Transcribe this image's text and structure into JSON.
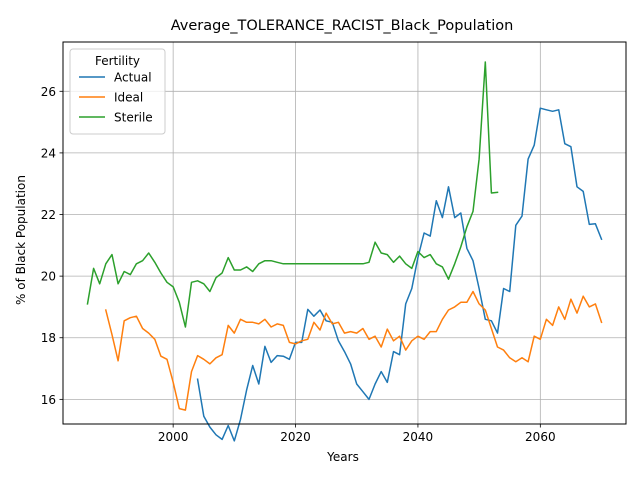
{
  "chart_data": {
    "type": "line",
    "title": "Average_TOLERANCE_RACIST_Black_Population",
    "xlabel": "Years",
    "ylabel": "% of Black Population",
    "xlim": [
      1982,
      2074
    ],
    "ylim": [
      15.2,
      27.6
    ],
    "xticks": [
      2000,
      2020,
      2040,
      2060
    ],
    "yticks": [
      16,
      18,
      20,
      22,
      24,
      26
    ],
    "grid": true,
    "legend": {
      "title": "Fertility",
      "position": "top-left"
    },
    "series": [
      {
        "name": "Actual",
        "color": "#1f77b4",
        "x": [
          2004,
          2005,
          2006,
          2007,
          2008,
          2009,
          2010,
          2011,
          2012,
          2013,
          2014,
          2015,
          2016,
          2017,
          2018,
          2019,
          2020,
          2021,
          2022,
          2023,
          2024,
          2025,
          2026,
          2027,
          2028,
          2029,
          2030,
          2031,
          2032,
          2033,
          2034,
          2035,
          2036,
          2037,
          2038,
          2039,
          2040,
          2041,
          2042,
          2043,
          2044,
          2045,
          2046,
          2047,
          2048,
          2049,
          2050,
          2051,
          2052,
          2053,
          2054,
          2055,
          2056,
          2057,
          2058,
          2059,
          2060,
          2061,
          2062,
          2063,
          2064,
          2065,
          2066,
          2067,
          2068,
          2069,
          2070
        ],
        "y": [
          16.65,
          15.45,
          15.1,
          14.85,
          14.7,
          15.15,
          14.65,
          15.35,
          16.3,
          17.1,
          16.5,
          17.72,
          17.2,
          17.42,
          17.4,
          17.3,
          17.85,
          17.85,
          18.92,
          18.7,
          18.9,
          18.55,
          18.5,
          17.9,
          17.55,
          17.15,
          16.5,
          16.25,
          16.0,
          16.5,
          16.9,
          16.55,
          17.55,
          17.45,
          19.1,
          19.6,
          20.6,
          21.4,
          21.3,
          22.45,
          21.9,
          22.9,
          21.9,
          22.05,
          20.9,
          20.5,
          19.6,
          18.6,
          18.55,
          18.15,
          19.6,
          19.5,
          21.65,
          21.95,
          23.8,
          24.25,
          25.45,
          25.4,
          25.35,
          25.4,
          24.3,
          24.2,
          22.9,
          22.75,
          21.68,
          21.7,
          21.2
        ]
      },
      {
        "name": "Ideal",
        "color": "#ff7f0e",
        "x": [
          1989,
          1990,
          1991,
          1992,
          1993,
          1994,
          1995,
          1996,
          1997,
          1998,
          1999,
          2000,
          2001,
          2002,
          2003,
          2004,
          2005,
          2006,
          2007,
          2008,
          2009,
          2010,
          2011,
          2012,
          2013,
          2014,
          2015,
          2016,
          2017,
          2018,
          2019,
          2020,
          2021,
          2022,
          2023,
          2024,
          2025,
          2026,
          2027,
          2028,
          2029,
          2030,
          2031,
          2032,
          2033,
          2034,
          2035,
          2036,
          2037,
          2038,
          2039,
          2040,
          2041,
          2042,
          2043,
          2044,
          2045,
          2046,
          2047,
          2048,
          2049,
          2050,
          2051,
          2052,
          2053,
          2054,
          2055,
          2056,
          2057,
          2058,
          2059,
          2060,
          2061,
          2062,
          2063,
          2064,
          2065,
          2066,
          2067,
          2068,
          2069,
          2070
        ],
        "y": [
          18.9,
          18.1,
          17.25,
          18.55,
          18.65,
          18.7,
          18.3,
          18.15,
          17.95,
          17.4,
          17.3,
          16.55,
          15.7,
          15.65,
          16.9,
          17.42,
          17.3,
          17.15,
          17.35,
          17.45,
          18.4,
          18.15,
          18.6,
          18.5,
          18.5,
          18.45,
          18.6,
          18.35,
          18.45,
          18.4,
          17.85,
          17.8,
          17.9,
          17.95,
          18.5,
          18.25,
          18.8,
          18.45,
          18.5,
          18.15,
          18.2,
          18.15,
          18.3,
          17.95,
          18.05,
          17.7,
          18.28,
          17.9,
          18.05,
          17.6,
          17.9,
          18.05,
          17.95,
          18.2,
          18.2,
          18.6,
          18.9,
          19.0,
          19.15,
          19.15,
          19.5,
          19.1,
          18.9,
          18.3,
          17.7,
          17.6,
          17.35,
          17.22,
          17.35,
          17.22,
          18.05,
          17.95,
          18.6,
          18.4,
          19.0,
          18.6,
          19.25,
          18.8,
          19.35,
          19.0,
          19.1,
          18.5
        ]
      },
      {
        "name": "Sterile",
        "color": "#2ca02c",
        "x": [
          1986,
          1987,
          1988,
          1989,
          1990,
          1991,
          1992,
          1993,
          1994,
          1995,
          1996,
          1997,
          1998,
          1999,
          2000,
          2001,
          2002,
          2003,
          2004,
          2005,
          2006,
          2007,
          2008,
          2009,
          2010,
          2011,
          2012,
          2013,
          2014,
          2015,
          2016,
          2017,
          2018,
          2019,
          2020,
          2021,
          2022,
          2023,
          2024,
          2025,
          2026,
          2027,
          2028,
          2029,
          2030,
          2031,
          2032,
          2033,
          2034,
          2035,
          2036,
          2037,
          2038,
          2039,
          2040,
          2041,
          2042,
          2043,
          2044,
          2045,
          2046,
          2047,
          2048,
          2049,
          2050,
          2051,
          2052,
          2053
        ],
        "y": [
          19.1,
          20.25,
          19.75,
          20.4,
          20.7,
          19.75,
          20.15,
          20.05,
          20.4,
          20.5,
          20.75,
          20.45,
          20.1,
          19.8,
          19.65,
          19.15,
          18.35,
          19.8,
          19.85,
          19.75,
          19.5,
          19.95,
          20.1,
          20.6,
          20.2,
          20.2,
          20.3,
          20.15,
          20.4,
          20.5,
          20.5,
          20.45,
          20.4,
          20.4,
          20.4,
          20.4,
          20.4,
          20.4,
          20.4,
          20.4,
          20.4,
          20.4,
          20.4,
          20.4,
          20.4,
          20.4,
          20.45,
          21.1,
          20.75,
          20.7,
          20.45,
          20.65,
          20.4,
          20.25,
          20.8,
          20.6,
          20.7,
          20.4,
          20.3,
          19.9,
          20.4,
          20.95,
          21.6,
          22.1,
          23.8,
          26.95,
          22.7,
          22.72
        ]
      }
    ]
  }
}
